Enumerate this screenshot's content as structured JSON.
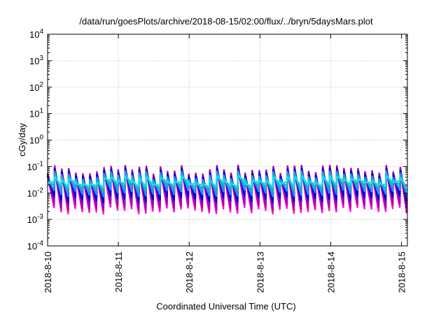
{
  "chart_data": {
    "type": "line",
    "title": "/data/run/goesPlots/archive/2018-08-15/02:00/flux/../bryn/5daysMars.plot",
    "xlabel": "Coordinated Universal Time (UTC)",
    "ylabel": "cGy/day",
    "yscale": "log",
    "ylim": [
      0.0001,
      10000
    ],
    "y_ticks": [
      {
        "base": "10",
        "exp": "-4",
        "value": 0.0001
      },
      {
        "base": "10",
        "exp": "-3",
        "value": 0.001
      },
      {
        "base": "10",
        "exp": "-2",
        "value": 0.01
      },
      {
        "base": "10",
        "exp": "-1",
        "value": 0.1
      },
      {
        "base": "10",
        "exp": "0",
        "value": 1
      },
      {
        "base": "10",
        "exp": "1",
        "value": 10
      },
      {
        "base": "10",
        "exp": "2",
        "value": 100
      },
      {
        "base": "10",
        "exp": "3",
        "value": 1000
      },
      {
        "base": "10",
        "exp": "4",
        "value": 10000
      }
    ],
    "x_ticks": [
      "2018-8-10",
      "2018-8-11",
      "2018-8-12",
      "2018-8-13",
      "2018-8-14",
      "2018-8-15"
    ],
    "xlim": [
      "2018-08-10 00:00",
      "2018-08-15 02:00"
    ],
    "grid": true,
    "legend": "none",
    "pattern": {
      "type": "sawtooth",
      "teeth_per_day": 10,
      "peak_range": [
        0.05,
        0.11
      ],
      "trough_range": [
        0.0016,
        0.003
      ]
    },
    "series": [
      {
        "color": "#ff00ff",
        "peak_factor": 0.8,
        "trough_factor": 1.0
      },
      {
        "color": "#c8006e",
        "peak_factor": 1.0,
        "trough_factor": 1.35
      },
      {
        "color": "#9400d3",
        "peak_factor": 0.9,
        "trough_factor": 1.8
      },
      {
        "color": "#0000cd",
        "peak_factor": 0.78,
        "trough_factor": 2.7
      },
      {
        "color": "#1e90ff",
        "peak_factor": 0.62,
        "trough_factor": 4.5
      },
      {
        "color": "#20b2aa",
        "peak_factor": 0.5,
        "trough_factor": 7.0
      },
      {
        "color": "#00e5ee",
        "peak_factor": 0.4,
        "trough_factor": 10.0
      }
    ]
  }
}
